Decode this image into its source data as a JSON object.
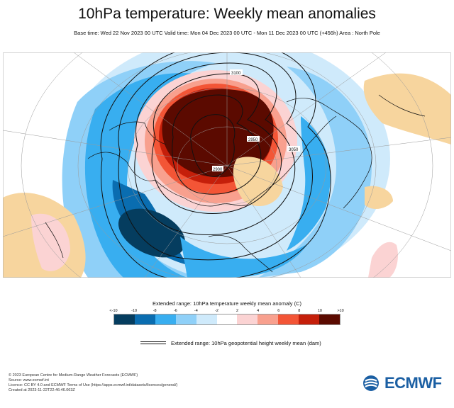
{
  "header": {
    "title": "10hPa temperature: Weekly mean anomalies",
    "subtitle": "Base time: Wed 22 Nov 2023 00 UTC Valid time: Mon 04 Dec 2023 00 UTC - Mon 11 Dec 2023 00 UTC (+456h) Area : North Pole"
  },
  "map": {
    "contour_labels": [
      "3100",
      "2950",
      "3050",
      "2900"
    ]
  },
  "legend": {
    "title": "Extended range: 10hPa temperature weekly mean anomaly (C)",
    "ticks": [
      "<-10",
      "-10",
      "-8",
      "-6",
      "-4",
      "-2",
      "2",
      "4",
      "6",
      "8",
      "10",
      ">10"
    ],
    "colors": [
      "#053d5f",
      "#0a6db0",
      "#38aef0",
      "#8fd0f8",
      "#cfeafb",
      "#ffffff",
      "#fbd3d3",
      "#f8a08e",
      "#f35536",
      "#c51f0a",
      "#5b0a00"
    ],
    "contour_label": "Extended range: 10hPa geopotential height weekly mean (dam)"
  },
  "footer": {
    "lines": [
      "© 2023 European Centre for Medium-Range Weather Forecasts (ECMWF)",
      "Source: www.ecmwf.int",
      "Licence: CC BY 4.0 and ECMWF Terms of Use (https://apps.ecmwf.int/datasets/licences/general/)",
      "Created at 2023-11-22T22:46:46.063Z"
    ],
    "logo_text": "ECMWF"
  }
}
